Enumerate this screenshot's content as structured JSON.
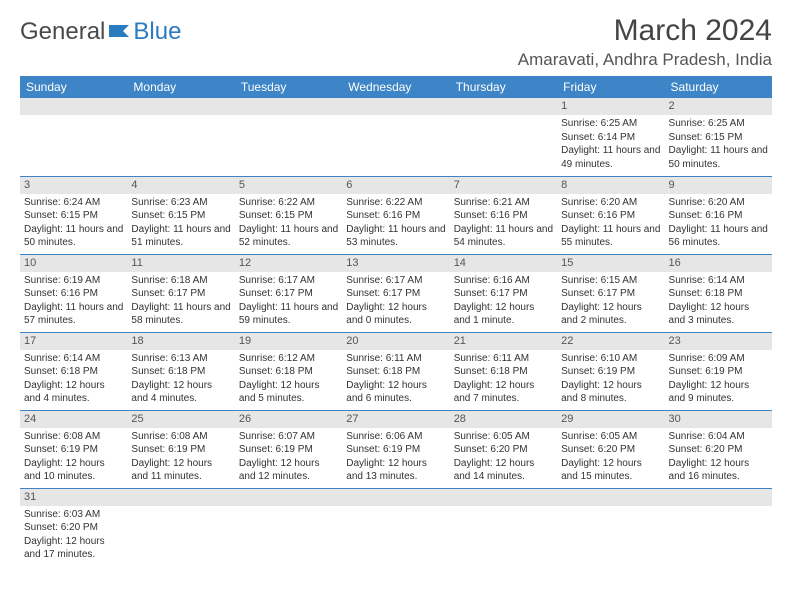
{
  "brand": {
    "part1": "General",
    "part2": "Blue"
  },
  "title": "March 2024",
  "location": "Amaravati, Andhra Pradesh, India",
  "colors": {
    "header_bg": "#3d85c6",
    "header_text": "#ffffff",
    "daynum_bg": "#e6e6e6",
    "rule": "#3d85c6",
    "brand_gray": "#4a4a4a",
    "brand_blue": "#2b7bbf"
  },
  "weekdays": [
    "Sunday",
    "Monday",
    "Tuesday",
    "Wednesday",
    "Thursday",
    "Friday",
    "Saturday"
  ],
  "weeks": [
    [
      {
        "n": "",
        "sr": "",
        "ss": "",
        "dl": ""
      },
      {
        "n": "",
        "sr": "",
        "ss": "",
        "dl": ""
      },
      {
        "n": "",
        "sr": "",
        "ss": "",
        "dl": ""
      },
      {
        "n": "",
        "sr": "",
        "ss": "",
        "dl": ""
      },
      {
        "n": "",
        "sr": "",
        "ss": "",
        "dl": ""
      },
      {
        "n": "1",
        "sr": "Sunrise: 6:25 AM",
        "ss": "Sunset: 6:14 PM",
        "dl": "Daylight: 11 hours and 49 minutes."
      },
      {
        "n": "2",
        "sr": "Sunrise: 6:25 AM",
        "ss": "Sunset: 6:15 PM",
        "dl": "Daylight: 11 hours and 50 minutes."
      }
    ],
    [
      {
        "n": "3",
        "sr": "Sunrise: 6:24 AM",
        "ss": "Sunset: 6:15 PM",
        "dl": "Daylight: 11 hours and 50 minutes."
      },
      {
        "n": "4",
        "sr": "Sunrise: 6:23 AM",
        "ss": "Sunset: 6:15 PM",
        "dl": "Daylight: 11 hours and 51 minutes."
      },
      {
        "n": "5",
        "sr": "Sunrise: 6:22 AM",
        "ss": "Sunset: 6:15 PM",
        "dl": "Daylight: 11 hours and 52 minutes."
      },
      {
        "n": "6",
        "sr": "Sunrise: 6:22 AM",
        "ss": "Sunset: 6:16 PM",
        "dl": "Daylight: 11 hours and 53 minutes."
      },
      {
        "n": "7",
        "sr": "Sunrise: 6:21 AM",
        "ss": "Sunset: 6:16 PM",
        "dl": "Daylight: 11 hours and 54 minutes."
      },
      {
        "n": "8",
        "sr": "Sunrise: 6:20 AM",
        "ss": "Sunset: 6:16 PM",
        "dl": "Daylight: 11 hours and 55 minutes."
      },
      {
        "n": "9",
        "sr": "Sunrise: 6:20 AM",
        "ss": "Sunset: 6:16 PM",
        "dl": "Daylight: 11 hours and 56 minutes."
      }
    ],
    [
      {
        "n": "10",
        "sr": "Sunrise: 6:19 AM",
        "ss": "Sunset: 6:16 PM",
        "dl": "Daylight: 11 hours and 57 minutes."
      },
      {
        "n": "11",
        "sr": "Sunrise: 6:18 AM",
        "ss": "Sunset: 6:17 PM",
        "dl": "Daylight: 11 hours and 58 minutes."
      },
      {
        "n": "12",
        "sr": "Sunrise: 6:17 AM",
        "ss": "Sunset: 6:17 PM",
        "dl": "Daylight: 11 hours and 59 minutes."
      },
      {
        "n": "13",
        "sr": "Sunrise: 6:17 AM",
        "ss": "Sunset: 6:17 PM",
        "dl": "Daylight: 12 hours and 0 minutes."
      },
      {
        "n": "14",
        "sr": "Sunrise: 6:16 AM",
        "ss": "Sunset: 6:17 PM",
        "dl": "Daylight: 12 hours and 1 minute."
      },
      {
        "n": "15",
        "sr": "Sunrise: 6:15 AM",
        "ss": "Sunset: 6:17 PM",
        "dl": "Daylight: 12 hours and 2 minutes."
      },
      {
        "n": "16",
        "sr": "Sunrise: 6:14 AM",
        "ss": "Sunset: 6:18 PM",
        "dl": "Daylight: 12 hours and 3 minutes."
      }
    ],
    [
      {
        "n": "17",
        "sr": "Sunrise: 6:14 AM",
        "ss": "Sunset: 6:18 PM",
        "dl": "Daylight: 12 hours and 4 minutes."
      },
      {
        "n": "18",
        "sr": "Sunrise: 6:13 AM",
        "ss": "Sunset: 6:18 PM",
        "dl": "Daylight: 12 hours and 4 minutes."
      },
      {
        "n": "19",
        "sr": "Sunrise: 6:12 AM",
        "ss": "Sunset: 6:18 PM",
        "dl": "Daylight: 12 hours and 5 minutes."
      },
      {
        "n": "20",
        "sr": "Sunrise: 6:11 AM",
        "ss": "Sunset: 6:18 PM",
        "dl": "Daylight: 12 hours and 6 minutes."
      },
      {
        "n": "21",
        "sr": "Sunrise: 6:11 AM",
        "ss": "Sunset: 6:18 PM",
        "dl": "Daylight: 12 hours and 7 minutes."
      },
      {
        "n": "22",
        "sr": "Sunrise: 6:10 AM",
        "ss": "Sunset: 6:19 PM",
        "dl": "Daylight: 12 hours and 8 minutes."
      },
      {
        "n": "23",
        "sr": "Sunrise: 6:09 AM",
        "ss": "Sunset: 6:19 PM",
        "dl": "Daylight: 12 hours and 9 minutes."
      }
    ],
    [
      {
        "n": "24",
        "sr": "Sunrise: 6:08 AM",
        "ss": "Sunset: 6:19 PM",
        "dl": "Daylight: 12 hours and 10 minutes."
      },
      {
        "n": "25",
        "sr": "Sunrise: 6:08 AM",
        "ss": "Sunset: 6:19 PM",
        "dl": "Daylight: 12 hours and 11 minutes."
      },
      {
        "n": "26",
        "sr": "Sunrise: 6:07 AM",
        "ss": "Sunset: 6:19 PM",
        "dl": "Daylight: 12 hours and 12 minutes."
      },
      {
        "n": "27",
        "sr": "Sunrise: 6:06 AM",
        "ss": "Sunset: 6:19 PM",
        "dl": "Daylight: 12 hours and 13 minutes."
      },
      {
        "n": "28",
        "sr": "Sunrise: 6:05 AM",
        "ss": "Sunset: 6:20 PM",
        "dl": "Daylight: 12 hours and 14 minutes."
      },
      {
        "n": "29",
        "sr": "Sunrise: 6:05 AM",
        "ss": "Sunset: 6:20 PM",
        "dl": "Daylight: 12 hours and 15 minutes."
      },
      {
        "n": "30",
        "sr": "Sunrise: 6:04 AM",
        "ss": "Sunset: 6:20 PM",
        "dl": "Daylight: 12 hours and 16 minutes."
      }
    ],
    [
      {
        "n": "31",
        "sr": "Sunrise: 6:03 AM",
        "ss": "Sunset: 6:20 PM",
        "dl": "Daylight: 12 hours and 17 minutes."
      },
      {
        "n": "",
        "sr": "",
        "ss": "",
        "dl": ""
      },
      {
        "n": "",
        "sr": "",
        "ss": "",
        "dl": ""
      },
      {
        "n": "",
        "sr": "",
        "ss": "",
        "dl": ""
      },
      {
        "n": "",
        "sr": "",
        "ss": "",
        "dl": ""
      },
      {
        "n": "",
        "sr": "",
        "ss": "",
        "dl": ""
      },
      {
        "n": "",
        "sr": "",
        "ss": "",
        "dl": ""
      }
    ]
  ]
}
